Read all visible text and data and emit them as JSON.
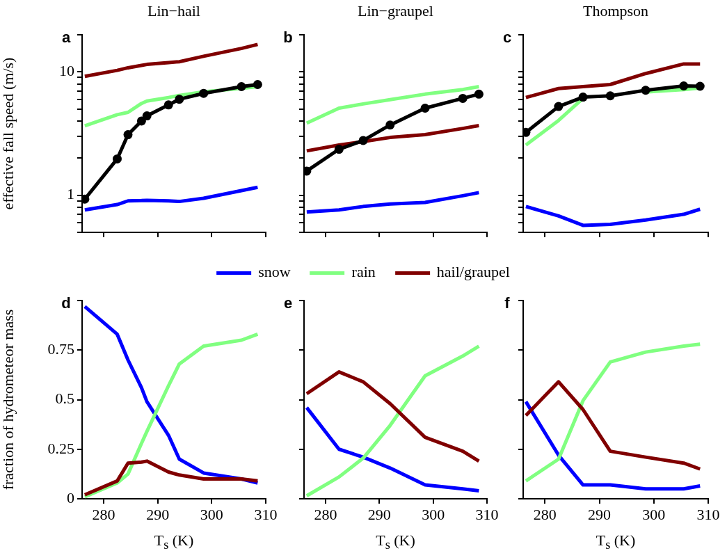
{
  "chart_data": [
    {
      "type": "line",
      "title": "Lin−hail",
      "ylabel": "effective fall speed (m/s)",
      "annotations": [
        "a"
      ],
      "x": [
        276.5,
        282.5,
        284.5,
        287,
        288,
        292,
        294,
        298.5,
        305.5,
        308.5
      ],
      "xlim": [
        276,
        310
      ],
      "xticks": [
        280,
        290,
        300,
        310
      ],
      "ylim": [
        0.5,
        20
      ],
      "yticks": [
        {
          "value": 0.5,
          "label": null
        },
        {
          "value": 0.6,
          "label": null
        },
        {
          "value": 0.7,
          "label": null
        },
        {
          "value": 0.8,
          "label": null
        },
        {
          "value": 0.9,
          "label": null
        },
        1,
        {
          "value": 2,
          "label": null
        },
        {
          "value": 3,
          "label": null
        },
        {
          "value": 4,
          "label": null
        },
        {
          "value": 5,
          "label": null
        },
        {
          "value": 6,
          "label": null
        },
        {
          "value": 7,
          "label": null
        },
        {
          "value": 8,
          "label": null
        },
        {
          "value": 9,
          "label": null
        },
        10,
        {
          "value": 20,
          "label": null
        }
      ],
      "log": true,
      "tick_labels": "y",
      "series": [
        {
          "color": "#0000ff",
          "values": [
            0.76,
            0.84,
            0.9,
            0.905,
            0.91,
            0.9,
            0.89,
            0.945,
            1.09,
            1.16
          ]
        },
        {
          "color": "#80ff80",
          "values": [
            3.65,
            4.5,
            4.7,
            5.55,
            5.8,
            6.2,
            6.45,
            6.9,
            7.35,
            7.6
          ]
        },
        {
          "color": "#800000",
          "values": [
            9.2,
            10.3,
            10.8,
            11.3,
            11.5,
            11.9,
            12.1,
            13.4,
            15.5,
            16.7
          ]
        },
        {
          "color": "#000000",
          "marker": "circle",
          "values": [
            0.93,
            1.97,
            3.1,
            4.0,
            4.4,
            5.4,
            6.0,
            6.7,
            7.6,
            7.9
          ]
        }
      ]
    },
    {
      "type": "line",
      "title": "Lin−graupel",
      "annotations": [
        "b"
      ],
      "x": [
        276.5,
        282.5,
        287,
        292,
        298.5,
        305.5,
        308.5
      ],
      "xlim": [
        276,
        310
      ],
      "xticks": [
        280,
        290,
        300,
        310
      ],
      "ylim": [
        0.5,
        20
      ],
      "yticks": [
        {
          "value": 0.5,
          "label": null
        },
        {
          "value": 0.6,
          "label": null
        },
        {
          "value": 0.7,
          "label": null
        },
        {
          "value": 0.8,
          "label": null
        },
        {
          "value": 0.9,
          "label": null
        },
        1,
        {
          "value": 2,
          "label": null
        },
        {
          "value": 3,
          "label": null
        },
        {
          "value": 4,
          "label": null
        },
        {
          "value": 5,
          "label": null
        },
        {
          "value": 6,
          "label": null
        },
        {
          "value": 7,
          "label": null
        },
        {
          "value": 8,
          "label": null
        },
        {
          "value": 9,
          "label": null
        },
        10,
        {
          "value": 20,
          "label": null
        }
      ],
      "log": true,
      "tick_labels": false,
      "series": [
        {
          "color": "#0000ff",
          "values": [
            0.73,
            0.76,
            0.81,
            0.85,
            0.875,
            0.99,
            1.05
          ]
        },
        {
          "color": "#80ff80",
          "values": [
            3.84,
            5.08,
            5.5,
            5.96,
            6.6,
            7.2,
            7.6
          ]
        },
        {
          "color": "#800000",
          "values": [
            2.29,
            2.55,
            2.72,
            2.94,
            3.1,
            3.48,
            3.67
          ]
        },
        {
          "color": "#000000",
          "marker": "circle",
          "values": [
            1.57,
            2.36,
            2.78,
            3.71,
            5.08,
            6.1,
            6.6
          ]
        }
      ]
    },
    {
      "type": "line",
      "title": "Thompson",
      "annotations": [
        "c"
      ],
      "x": [
        276.5,
        282.5,
        287,
        292,
        298.5,
        305.5,
        308.5
      ],
      "xlim": [
        276,
        310
      ],
      "xticks": [
        280,
        290,
        300,
        310
      ],
      "ylim": [
        0.5,
        20
      ],
      "yticks": [
        {
          "value": 0.5,
          "label": null
        },
        {
          "value": 0.6,
          "label": null
        },
        {
          "value": 0.7,
          "label": null
        },
        {
          "value": 0.8,
          "label": null
        },
        {
          "value": 0.9,
          "label": null
        },
        1,
        {
          "value": 2,
          "label": null
        },
        {
          "value": 3,
          "label": null
        },
        {
          "value": 4,
          "label": null
        },
        {
          "value": 5,
          "label": null
        },
        {
          "value": 6,
          "label": null
        },
        {
          "value": 7,
          "label": null
        },
        {
          "value": 8,
          "label": null
        },
        {
          "value": 9,
          "label": null
        },
        10,
        {
          "value": 20,
          "label": null
        }
      ],
      "log": true,
      "tick_labels": false,
      "series": [
        {
          "color": "#0000ff",
          "values": [
            0.81,
            0.68,
            0.57,
            0.58,
            0.63,
            0.7,
            0.77
          ]
        },
        {
          "color": "#80ff80",
          "values": [
            2.55,
            4.04,
            6.1,
            null,
            6.87,
            7.2,
            7.4
          ]
        },
        {
          "color": "#800000",
          "values": [
            6.2,
            7.33,
            7.6,
            7.9,
            9.7,
            11.6,
            11.6
          ]
        },
        {
          "color": "#000000",
          "marker": "circle",
          "values": [
            3.23,
            5.24,
            6.25,
            6.4,
            7.1,
            7.7,
            7.65
          ]
        }
      ]
    },
    {
      "type": "line",
      "ylabel": "fraction of hydrometeor mass",
      "xlabel": "T$_{s}$ (K)",
      "annotations": [
        "d"
      ],
      "x": [
        276.5,
        282.5,
        284.5,
        287,
        288,
        292,
        294,
        298.5,
        305.5,
        308.5
      ],
      "xlim": [
        276,
        310
      ],
      "xticks": [
        280,
        290,
        300,
        310
      ],
      "ylim": [
        0,
        1
      ],
      "yticks": [
        0,
        0.25,
        0.5,
        0.75,
        {
          "value": 1,
          "label": null
        }
      ],
      "series": [
        {
          "color": "#0000ff",
          "values": [
            0.97,
            0.83,
            0.7,
            0.56,
            0.49,
            0.32,
            0.2,
            0.13,
            0.1,
            0.08
          ]
        },
        {
          "color": "#80ff80",
          "values": [
            0.01,
            0.08,
            0.125,
            0.28,
            0.34,
            0.57,
            0.68,
            0.77,
            0.8,
            0.83
          ]
        },
        {
          "color": "#800000",
          "values": [
            0.02,
            0.09,
            0.18,
            0.185,
            0.19,
            0.135,
            0.12,
            0.1,
            0.1,
            0.09
          ]
        }
      ]
    },
    {
      "type": "line",
      "xlabel": "T$_{s}$ (K)",
      "annotations": [
        "e"
      ],
      "legend": "top",
      "x": [
        276.5,
        282.5,
        287,
        292,
        298.5,
        305.5,
        308.5
      ],
      "xlim": [
        276,
        310
      ],
      "xticks": [
        280,
        290,
        300,
        310
      ],
      "ylim": [
        0,
        1
      ],
      "yticks": [
        0,
        0.25,
        0.5,
        0.75,
        {
          "value": 1,
          "label": null
        }
      ],
      "tick_labels": "x",
      "series": [
        {
          "name": "snow",
          "color": "#0000ff",
          "values": [
            0.46,
            0.25,
            0.21,
            0.155,
            0.07,
            0.05,
            0.04
          ]
        },
        {
          "name": "rain",
          "color": "#80ff80",
          "values": [
            0.015,
            0.11,
            0.205,
            0.37,
            0.62,
            0.72,
            0.77
          ]
        },
        {
          "name": "hail/graupel",
          "color": "#800000",
          "values": [
            0.53,
            0.64,
            0.59,
            0.48,
            0.31,
            0.24,
            0.19
          ]
        }
      ]
    },
    {
      "type": "line",
      "xlabel": "T$_{s}$ (K)",
      "annotations": [
        "f"
      ],
      "x": [
        276.5,
        282.5,
        287,
        292,
        298.5,
        305.5,
        308.5
      ],
      "xlim": [
        276,
        310
      ],
      "xticks": [
        280,
        290,
        300,
        310
      ],
      "ylim": [
        0,
        1
      ],
      "yticks": [
        0,
        0.25,
        0.5,
        0.75,
        {
          "value": 1,
          "label": null
        }
      ],
      "tick_labels": "x",
      "series": [
        {
          "color": "#0000ff",
          "values": [
            0.49,
            0.22,
            0.07,
            0.07,
            0.05,
            0.05,
            0.065
          ]
        },
        {
          "color": "#80ff80",
          "values": [
            0.09,
            0.2,
            0.495,
            0.69,
            0.74,
            0.77,
            0.78
          ]
        },
        {
          "color": "#800000",
          "values": [
            0.42,
            0.59,
            0.45,
            0.24,
            0.21,
            0.18,
            0.15
          ]
        }
      ]
    }
  ]
}
